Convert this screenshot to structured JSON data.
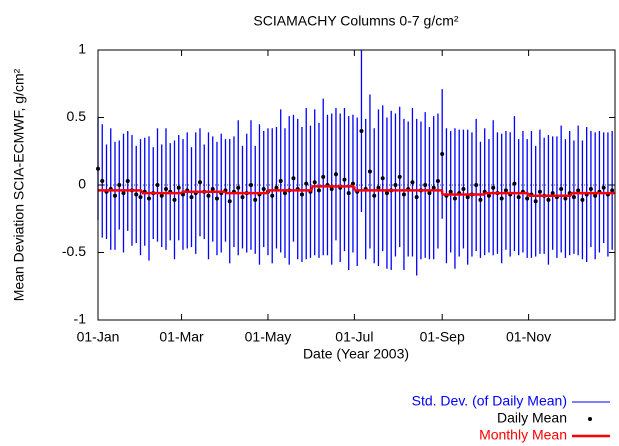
{
  "chart_data": {
    "type": "errorbar",
    "title": "SCIAMACHY Columns 0-7 g/cm²",
    "xlabel": "Date (Year 2003)",
    "ylabel": "Mean Deviation SCIA-ECMWF, g/cm²",
    "xlim": [
      1,
      366
    ],
    "ylim": [
      -1,
      1
    ],
    "xticks": [
      {
        "value": 1,
        "label": "01-Jan"
      },
      {
        "value": 60,
        "label": "01-Mar"
      },
      {
        "value": 121,
        "label": "01-May"
      },
      {
        "value": 182,
        "label": "01-Jul"
      },
      {
        "value": 244,
        "label": "01-Sep"
      },
      {
        "value": 305,
        "label": "01-Nov"
      }
    ],
    "yticks": [
      -1,
      -0.5,
      0,
      0.5,
      1
    ],
    "zero_line": true,
    "legend": "bottom-right",
    "x": [
      1,
      4,
      7,
      10,
      13,
      16,
      19,
      22,
      25,
      28,
      31,
      34,
      37,
      40,
      43,
      46,
      49,
      52,
      55,
      58,
      61,
      64,
      67,
      70,
      73,
      76,
      79,
      82,
      85,
      88,
      91,
      94,
      97,
      100,
      103,
      106,
      109,
      112,
      115,
      118,
      121,
      124,
      127,
      130,
      133,
      136,
      139,
      142,
      145,
      148,
      151,
      154,
      157,
      160,
      163,
      166,
      169,
      172,
      175,
      178,
      181,
      184,
      187,
      190,
      193,
      196,
      199,
      202,
      205,
      208,
      211,
      214,
      217,
      220,
      223,
      226,
      229,
      232,
      235,
      238,
      241,
      244,
      247,
      250,
      253,
      256,
      259,
      262,
      265,
      268,
      271,
      274,
      277,
      280,
      283,
      286,
      289,
      292,
      295,
      298,
      301,
      304,
      307,
      310,
      313,
      316,
      319,
      322,
      325,
      328,
      331,
      334,
      337,
      340,
      343,
      346,
      349,
      352,
      355,
      358,
      361,
      364
    ],
    "series": [
      {
        "name": "Std. Dev. (of Daily Mean)",
        "color": "#0000ff",
        "values": [
          0.38,
          0.42,
          0.35,
          0.45,
          0.4,
          0.33,
          0.44,
          0.37,
          0.41,
          0.36,
          0.43,
          0.4,
          0.46,
          0.34,
          0.42,
          0.38,
          0.45,
          0.36,
          0.44,
          0.39,
          0.41,
          0.43,
          0.37,
          0.45,
          0.4,
          0.35,
          0.47,
          0.39,
          0.42,
          0.44,
          0.38,
          0.46,
          0.41,
          0.5,
          0.38,
          0.44,
          0.48,
          0.4,
          0.52,
          0.43,
          0.47,
          0.5,
          0.45,
          0.53,
          0.48,
          0.55,
          0.47,
          0.52,
          0.5,
          0.56,
          0.49,
          0.54,
          0.5,
          0.58,
          0.52,
          0.56,
          0.49,
          0.55,
          0.53,
          0.57,
          0.51,
          0.55,
          0.6,
          0.52,
          0.57,
          0.5,
          0.58,
          0.54,
          0.56,
          0.59,
          0.53,
          0.52,
          0.56,
          0.5,
          0.55,
          0.58,
          0.51,
          0.54,
          0.49,
          0.53,
          0.5,
          0.48,
          0.5,
          0.45,
          0.52,
          0.47,
          0.44,
          0.5,
          0.46,
          0.49,
          0.43,
          0.47,
          0.42,
          0.5,
          0.45,
          0.48,
          0.44,
          0.46,
          0.5,
          0.43,
          0.45,
          0.44,
          0.47,
          0.41,
          0.46,
          0.43,
          0.48,
          0.42,
          0.45,
          0.47,
          0.44,
          0.46,
          0.42,
          0.48,
          0.44,
          0.5,
          0.43,
          0.47,
          0.45,
          0.41,
          0.46,
          0.44
        ]
      },
      {
        "name": "Daily Mean",
        "color": "#000000",
        "values": [
          0.12,
          0.03,
          -0.05,
          -0.03,
          -0.08,
          0.0,
          -0.06,
          0.03,
          -0.04,
          -0.07,
          -0.09,
          -0.05,
          -0.1,
          -0.06,
          0.0,
          -0.08,
          -0.03,
          -0.05,
          -0.11,
          -0.02,
          -0.07,
          -0.04,
          -0.09,
          -0.06,
          0.02,
          -0.05,
          -0.08,
          -0.03,
          -0.1,
          -0.06,
          -0.04,
          -0.12,
          -0.05,
          -0.02,
          -0.09,
          -0.06,
          0.0,
          -0.11,
          -0.07,
          -0.03,
          -0.05,
          -0.08,
          -0.02,
          0.03,
          -0.06,
          -0.04,
          0.05,
          -0.03,
          -0.07,
          0.01,
          -0.05,
          0.02,
          -0.04,
          0.06,
          0.0,
          -0.03,
          0.08,
          -0.02,
          0.04,
          -0.06,
          0.01,
          -0.05,
          0.4,
          -0.03,
          0.1,
          -0.08,
          -0.02,
          0.05,
          -0.06,
          -0.04,
          0.0,
          0.06,
          -0.07,
          -0.03,
          0.02,
          -0.09,
          -0.04,
          0.0,
          -0.06,
          -0.02,
          0.03,
          0.23,
          -0.08,
          -0.05,
          -0.1,
          -0.06,
          -0.03,
          -0.09,
          -0.07,
          0.0,
          -0.11,
          -0.05,
          -0.08,
          -0.02,
          -0.06,
          -0.1,
          -0.04,
          -0.07,
          0.01,
          -0.09,
          -0.05,
          -0.1,
          -0.07,
          -0.12,
          -0.05,
          -0.08,
          -0.11,
          -0.06,
          -0.09,
          -0.03,
          -0.1,
          -0.06,
          -0.09,
          -0.04,
          -0.11,
          -0.07,
          -0.03,
          -0.08,
          -0.05,
          -0.02,
          -0.07,
          -0.04
        ]
      },
      {
        "name": "Monthly Mean",
        "color": "#ff0000",
        "x": [
          1,
          32,
          60,
          91,
          121,
          152,
          182,
          213,
          244,
          274,
          305,
          335
        ],
        "values": [
          -0.04,
          -0.06,
          -0.05,
          -0.06,
          -0.04,
          -0.01,
          -0.04,
          -0.04,
          -0.07,
          -0.06,
          -0.08,
          -0.06
        ]
      }
    ]
  }
}
